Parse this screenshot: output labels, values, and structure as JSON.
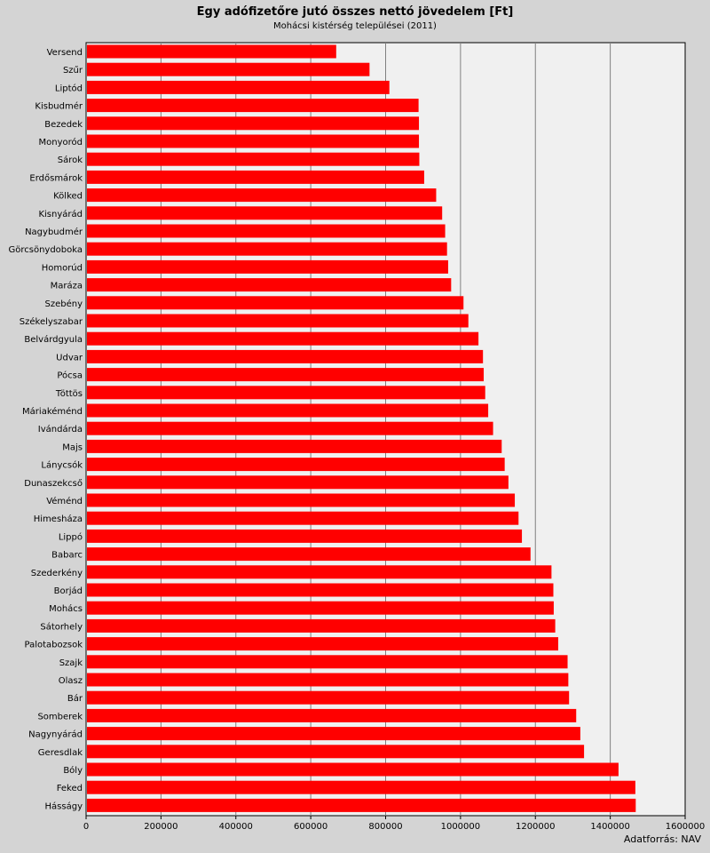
{
  "chart_data": {
    "type": "bar",
    "orientation": "horizontal",
    "title": "Egy adófizetőre jutó összes nettó jövedelem [Ft]",
    "subtitle": "Mohácsi kistérség települései (2011)",
    "source": "Adatforrás: NAV",
    "xlim": [
      0,
      1600000
    ],
    "xticks": [
      0,
      200000,
      400000,
      600000,
      800000,
      1000000,
      1200000,
      1400000,
      1600000
    ],
    "grid": true,
    "colors": {
      "bar": "#ff0000",
      "plot_bg": "#f0f0f0",
      "page_bg": "#d4d4d4",
      "grid": "#808080"
    },
    "categories": [
      "Versend",
      "Szűr",
      "Liptód",
      "Kisbudmér",
      "Bezedek",
      "Monyoród",
      "Sárok",
      "Erdősmárok",
      "Kölked",
      "Kisnyárád",
      "Nagybudmér",
      "Görcsönydoboka",
      "Homorúd",
      "Maráza",
      "Szebény",
      "Székelyszabar",
      "Belvárdgyula",
      "Udvar",
      "Pócsa",
      "Töttös",
      "Máriakéménd",
      "Ivándárda",
      "Majs",
      "Lánycsók",
      "Dunaszekcső",
      "Véménd",
      "Himesháza",
      "Lippó",
      "Babarc",
      "Szederkény",
      "Borjád",
      "Mohács",
      "Sátorhely",
      "Palotabozsok",
      "Szajk",
      "Olasz",
      "Bár",
      "Somberek",
      "Nagynyárád",
      "Geresdlak",
      "Bóly",
      "Feked",
      "Hásságy"
    ],
    "values": [
      668000,
      757000,
      810000,
      888000,
      889000,
      889000,
      890000,
      903000,
      935000,
      951000,
      959000,
      964000,
      967000,
      975000,
      1008000,
      1021000,
      1048000,
      1060000,
      1062000,
      1066000,
      1074000,
      1087000,
      1110000,
      1118000,
      1128000,
      1145000,
      1155000,
      1164000,
      1187000,
      1243000,
      1248000,
      1249000,
      1253000,
      1261000,
      1286000,
      1288000,
      1290000,
      1309000,
      1320000,
      1330000,
      1422000,
      1467000,
      1468000
    ]
  }
}
